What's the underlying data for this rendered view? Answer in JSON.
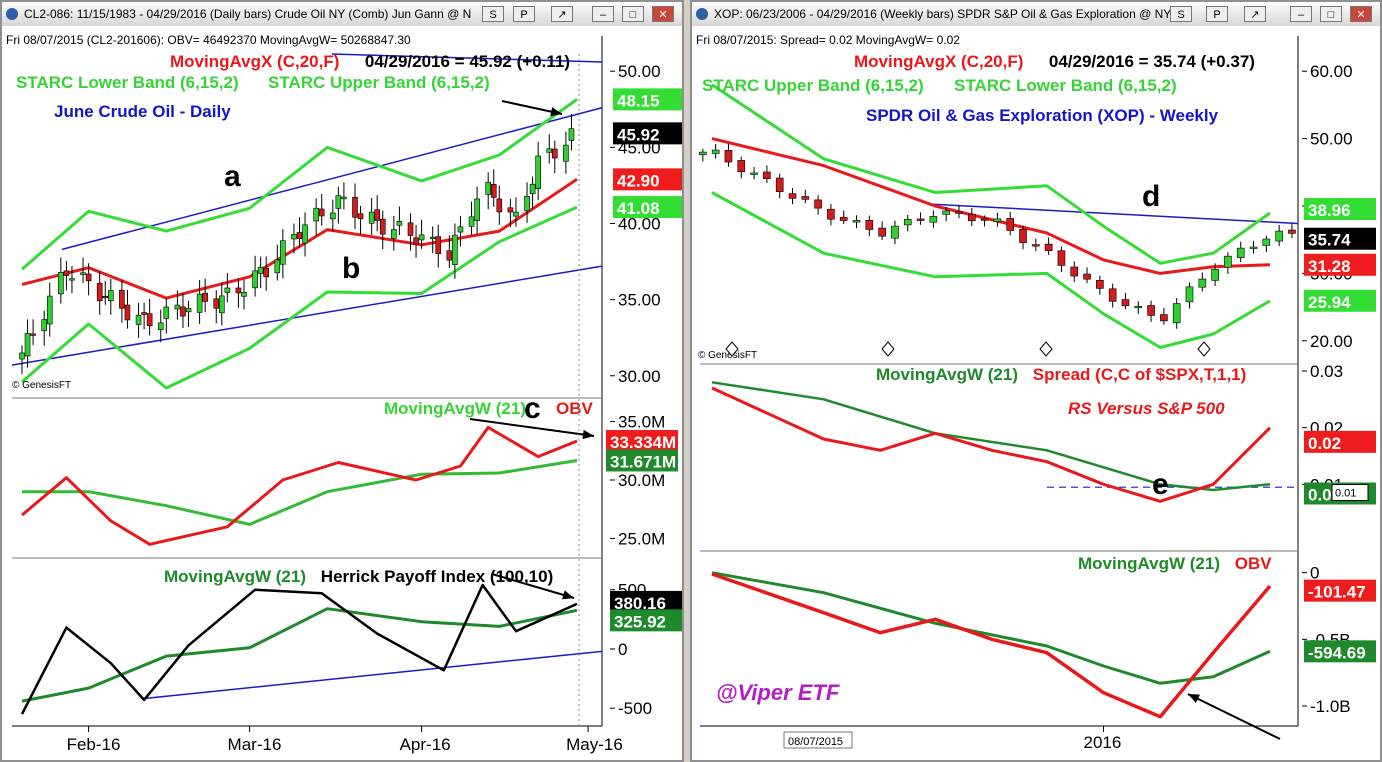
{
  "windows": [
    {
      "title": "CL2-086: 11/15/1983 - 04/29/2016 (Daily bars)  Crude Oil NY (Comb) Jun Gann @ N",
      "buttons": [
        "S",
        "P",
        "↗",
        "–",
        "□",
        "✕"
      ],
      "info_line": "Fri   08/07/2015 (CL2-201606): OBV= 46492370  MovingAvgW= 50268847.30",
      "copyright": "© GenesisFT",
      "x_ticks": [
        "Feb-16",
        "Mar-16",
        "Apr-16",
        "May-16"
      ],
      "panels": [
        {
          "name": "price",
          "legends": [
            {
              "text": "MovingAvgX (C,20,F)",
              "color": "#e8191a"
            },
            {
              "text": "04/29/2016 = 45.92 (+0.11)",
              "color": "#000000"
            },
            {
              "text": "STARC Lower Band (6,15,2)",
              "color": "#36d436"
            },
            {
              "text": "STARC Upper Band (6,15,2)",
              "color": "#36d436"
            },
            {
              "text": "June Crude Oil - Daily",
              "color": "#1515c8"
            }
          ],
          "annotations": [
            "a",
            "b"
          ],
          "y_ticks": [
            "50.00",
            "45.00",
            "40.00",
            "35.00",
            "30.00"
          ],
          "value_tags": [
            {
              "text": "48.15",
              "bg": "#33dd33",
              "fg": "#ffffff"
            },
            {
              "text": "45.92",
              "bg": "#000000",
              "fg": "#ffffff"
            },
            {
              "text": "42.90",
              "bg": "#ee1c1c",
              "fg": "#ffffff"
            },
            {
              "text": "41.08",
              "bg": "#33dd33",
              "fg": "#ffffff"
            }
          ]
        },
        {
          "name": "obv",
          "legends": [
            {
              "text": "MovingAvgW (21)",
              "color": "#36d436"
            },
            {
              "text": "OBV",
              "color": "#e8191a"
            }
          ],
          "annotations": [
            "c"
          ],
          "y_ticks": [
            "35.0M",
            "30.0M",
            "25.0M"
          ],
          "value_tags": [
            {
              "text": "33.334M",
              "bg": "#ee1c1c",
              "fg": "#ffffff"
            },
            {
              "text": "31.671M",
              "bg": "#1f8a2b",
              "fg": "#ffffff"
            }
          ]
        },
        {
          "name": "herrick",
          "legends": [
            {
              "text": "MovingAvgW (21)",
              "color": "#1f8a2b"
            },
            {
              "text": "Herrick Payoff Index (100,10)",
              "color": "#000000"
            }
          ],
          "y_ticks": [
            "500",
            "0",
            "-500"
          ],
          "value_tags": [
            {
              "text": "380.16",
              "bg": "#000000",
              "fg": "#ffffff"
            },
            {
              "text": "325.92",
              "bg": "#1f8a2b",
              "fg": "#ffffff"
            }
          ]
        }
      ]
    },
    {
      "title": "XOP: 06/23/2006 - 04/29/2016 (Weekly bars)  SPDR S&P Oil & Gas Exploration @ NYS",
      "buttons": [
        "S",
        "P",
        "↗",
        "–",
        "□",
        "✕"
      ],
      "info_line": "Fri   08/07/2015:  Spread= 0.02  MovingAvgW= 0.02",
      "copyright": "© GenesisFT",
      "watermark": "@Viper ETF",
      "x_ticks": [
        "08/07/2015",
        "2016"
      ],
      "panels": [
        {
          "name": "price",
          "legends": [
            {
              "text": "MovingAvgX (C,20,F)",
              "color": "#e8191a"
            },
            {
              "text": "04/29/2016 = 35.74 (+0.37)",
              "color": "#000000"
            },
            {
              "text": "STARC Upper Band (6,15,2)",
              "color": "#36d436"
            },
            {
              "text": "STARC Lower Band (6,15,2)",
              "color": "#36d436"
            },
            {
              "text": "SPDR Oil & Gas Exploration (XOP) - Weekly",
              "color": "#1515c8"
            }
          ],
          "annotations": [
            "d"
          ],
          "y_ticks": [
            "60.00",
            "50.00",
            "40.00",
            "30.00",
            "20.00"
          ],
          "value_tags": [
            {
              "text": "38.96",
              "bg": "#33dd33",
              "fg": "#ffffff"
            },
            {
              "text": "35.74",
              "bg": "#000000",
              "fg": "#ffffff"
            },
            {
              "text": "31.28",
              "bg": "#ee1c1c",
              "fg": "#ffffff"
            },
            {
              "text": "25.94",
              "bg": "#33dd33",
              "fg": "#ffffff"
            }
          ]
        },
        {
          "name": "rs",
          "legends": [
            {
              "text": "MovingAvgW (21)",
              "color": "#1f8a2b"
            },
            {
              "text": "Spread (C,C of $SPX,T,1,1)",
              "color": "#e8191a"
            },
            {
              "text": "RS Versus S&P 500",
              "color": "#e8191a"
            }
          ],
          "annotations": [
            "e"
          ],
          "y_ticks": [
            "0.03",
            "0.02",
            "0.01"
          ],
          "value_tags": [
            {
              "text": "0.02",
              "bg": "#ee1c1c",
              "fg": "#ffffff"
            },
            {
              "text": "0.01",
              "bg": "#1f8a2b",
              "fg": "#ffffff"
            }
          ],
          "cursor_label": "0.01"
        },
        {
          "name": "obv",
          "legends": [
            {
              "text": "MovingAvgW (21)",
              "color": "#1f8a2b"
            },
            {
              "text": "OBV",
              "color": "#e8191a"
            }
          ],
          "y_ticks": [
            "0",
            "-0.5B",
            "-1.0B"
          ],
          "value_tags": [
            {
              "text": "-101.47",
              "bg": "#ee1c1c",
              "fg": "#ffffff"
            },
            {
              "text": "-594.69",
              "bg": "#1f8a2b",
              "fg": "#ffffff"
            }
          ]
        }
      ]
    }
  ],
  "chart_data": [
    {
      "type": "candlestick",
      "title": "June Crude Oil - Daily",
      "timeframe": "2016-01-20 to 2016-04-29",
      "ylim": [
        29,
        51
      ],
      "close_last": 45.92,
      "series": [
        {
          "name": "MovingAvgX (C,20,F)",
          "x": [
            "2016-01-20",
            "2016-02-01",
            "2016-02-15",
            "2016-03-01",
            "2016-03-15",
            "2016-04-01",
            "2016-04-15",
            "2016-04-29"
          ],
          "values": [
            36.0,
            37.1,
            35.1,
            36.5,
            39.6,
            38.6,
            39.5,
            42.9
          ]
        },
        {
          "name": "STARC Upper Band (6,15,2)",
          "x": [
            "2016-01-20",
            "2016-02-01",
            "2016-02-15",
            "2016-03-01",
            "2016-03-15",
            "2016-04-01",
            "2016-04-15",
            "2016-04-29"
          ],
          "values": [
            37.0,
            40.8,
            39.5,
            41.0,
            45.0,
            42.8,
            44.5,
            48.15
          ]
        },
        {
          "name": "STARC Lower Band (6,15,2)",
          "x": [
            "2016-01-20",
            "2016-02-01",
            "2016-02-15",
            "2016-03-01",
            "2016-03-15",
            "2016-04-01",
            "2016-04-15",
            "2016-04-29"
          ],
          "values": [
            29.6,
            33.4,
            29.2,
            31.8,
            35.5,
            35.4,
            38.8,
            41.08
          ]
        },
        {
          "name": "Close",
          "x": [
            "2016-01-20",
            "2016-01-28",
            "2016-02-05",
            "2016-02-11",
            "2016-02-19",
            "2016-02-26",
            "2016-03-04",
            "2016-03-10",
            "2016-03-17",
            "2016-03-24",
            "2016-03-31",
            "2016-04-06",
            "2016-04-12",
            "2016-04-18",
            "2016-04-22",
            "2016-04-29"
          ],
          "values": [
            31.5,
            37.0,
            35.0,
            33.5,
            34.6,
            35.2,
            37.0,
            39.6,
            41.5,
            40.0,
            39.2,
            38.0,
            42.5,
            40.2,
            44.0,
            45.92
          ]
        }
      ],
      "trendlines": [
        "upper channel",
        "lower channel"
      ],
      "annotations": [
        "a",
        "b"
      ]
    },
    {
      "type": "line",
      "title": "OBV",
      "ylim": [
        23.5,
        36.5
      ],
      "yunit": "M",
      "series": [
        {
          "name": "OBV",
          "x": [
            "2016-01-20",
            "2016-01-28",
            "2016-02-05",
            "2016-02-12",
            "2016-02-26",
            "2016-03-07",
            "2016-03-17",
            "2016-03-31",
            "2016-04-08",
            "2016-04-13",
            "2016-04-22",
            "2016-04-29"
          ],
          "values": [
            27.0,
            30.2,
            26.5,
            24.5,
            26.0,
            30.0,
            31.5,
            30.0,
            31.2,
            34.5,
            32.0,
            33.334
          ]
        },
        {
          "name": "MovingAvgW (21)",
          "x": [
            "2016-01-20",
            "2016-02-01",
            "2016-02-15",
            "2016-03-01",
            "2016-03-15",
            "2016-04-01",
            "2016-04-15",
            "2016-04-29"
          ],
          "values": [
            29.0,
            29.0,
            27.8,
            26.2,
            29.0,
            30.5,
            30.6,
            31.671
          ]
        }
      ],
      "annotations": [
        "c"
      ]
    },
    {
      "type": "line",
      "title": "Herrick Payoff Index (100,10)",
      "ylim": [
        -650,
        700
      ],
      "series": [
        {
          "name": "Herrick Payoff Index (100,10)",
          "x": [
            "2016-01-20",
            "2016-01-28",
            "2016-02-05",
            "2016-02-11",
            "2016-02-19",
            "2016-03-02",
            "2016-03-14",
            "2016-03-24",
            "2016-04-05",
            "2016-04-12",
            "2016-04-18",
            "2016-04-29"
          ],
          "values": [
            -550,
            180,
            -120,
            -430,
            30,
            500,
            470,
            130,
            -180,
            540,
            150,
            380.16
          ]
        },
        {
          "name": "MovingAvgW (21)",
          "x": [
            "2016-01-20",
            "2016-02-01",
            "2016-02-15",
            "2016-03-01",
            "2016-03-15",
            "2016-04-01",
            "2016-04-15",
            "2016-04-29"
          ],
          "values": [
            -440,
            -330,
            -60,
            10,
            340,
            230,
            190,
            325.92
          ]
        }
      ]
    },
    {
      "type": "candlestick",
      "title": "SPDR Oil & Gas Exploration (XOP) - Weekly",
      "timeframe": "2015-06 to 2016-04-29",
      "ylim": [
        17,
        63
      ],
      "close_last": 35.74,
      "series": [
        {
          "name": "MovingAvgX (C,20,F)",
          "x": [
            "2015-06",
            "2015-08",
            "2015-10",
            "2015-12",
            "2016-01",
            "2016-02",
            "2016-03",
            "2016-04"
          ],
          "values": [
            50.0,
            46.0,
            40.0,
            36.0,
            32.0,
            30.0,
            31.0,
            31.28
          ]
        },
        {
          "name": "STARC Upper Band (6,15,2)",
          "x": [
            "2015-06",
            "2015-08",
            "2015-10",
            "2015-12",
            "2016-01",
            "2016-02",
            "2016-03",
            "2016-04"
          ],
          "values": [
            58.0,
            47.0,
            42.0,
            43.0,
            37.0,
            31.5,
            33.0,
            38.96
          ]
        },
        {
          "name": "STARC Lower Band (6,15,2)",
          "x": [
            "2015-06",
            "2015-08",
            "2015-10",
            "2015-12",
            "2016-01",
            "2016-02",
            "2016-03",
            "2016-04"
          ],
          "values": [
            42.0,
            33.0,
            29.5,
            30.0,
            24.0,
            19.0,
            21.0,
            25.94
          ]
        },
        {
          "name": "Close",
          "x": [
            "2015-06",
            "2015-08",
            "2015-09",
            "2015-10",
            "2015-11",
            "2015-12",
            "2016-01",
            "2016-02",
            "2016-03",
            "2016-04"
          ],
          "values": [
            48.0,
            39.0,
            36.0,
            39.0,
            38.0,
            33.0,
            27.0,
            23.0,
            31.0,
            35.74
          ]
        }
      ],
      "trendlines": [
        "resistance line"
      ],
      "annotations": [
        "d"
      ]
    },
    {
      "type": "line",
      "title": "RS Versus S&P 500",
      "ylim": [
        0.0,
        0.03
      ],
      "series": [
        {
          "name": "Spread (C,C of $SPX,T,1,1)",
          "x": [
            "2015-06",
            "2015-08",
            "2015-09",
            "2015-10",
            "2015-11",
            "2015-12",
            "2016-01",
            "2016-02",
            "2016-03",
            "2016-04"
          ],
          "values": [
            0.027,
            0.018,
            0.016,
            0.019,
            0.016,
            0.014,
            0.01,
            0.007,
            0.01,
            0.02
          ]
        },
        {
          "name": "MovingAvgW (21)",
          "x": [
            "2015-06",
            "2015-08",
            "2015-10",
            "2015-12",
            "2016-01",
            "2016-02",
            "2016-03",
            "2016-04"
          ],
          "values": [
            0.028,
            0.025,
            0.019,
            0.016,
            0.013,
            0.01,
            0.009,
            0.01
          ]
        }
      ],
      "annotations": [
        "e"
      ]
    },
    {
      "type": "line",
      "title": "OBV",
      "ylim": [
        -1.15,
        0.05
      ],
      "yunit": "B",
      "series": [
        {
          "name": "OBV",
          "x": [
            "2015-06",
            "2015-08",
            "2015-09",
            "2015-10",
            "2015-11",
            "2015-12",
            "2016-01",
            "2016-02",
            "2016-03",
            "2016-04"
          ],
          "values": [
            -0.01,
            -0.3,
            -0.45,
            -0.35,
            -0.5,
            -0.6,
            -0.9,
            -1.08,
            -0.6,
            -0.1
          ]
        },
        {
          "name": "MovingAvgW (21)",
          "x": [
            "2015-06",
            "2015-08",
            "2015-10",
            "2015-12",
            "2016-01",
            "2016-02",
            "2016-03",
            "2016-04"
          ],
          "values": [
            0.0,
            -0.15,
            -0.38,
            -0.55,
            -0.7,
            -0.83,
            -0.78,
            -0.59
          ]
        }
      ]
    }
  ]
}
